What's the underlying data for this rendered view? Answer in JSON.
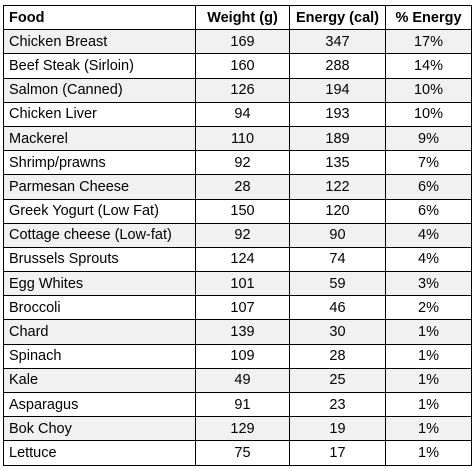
{
  "table": {
    "headers": [
      "Food",
      "Weight (g)",
      "Energy (cal)",
      "% Energy"
    ],
    "rows": [
      [
        "Chicken Breast",
        "169",
        "347",
        "17%"
      ],
      [
        "Beef Steak (Sirloin)",
        "160",
        "288",
        "14%"
      ],
      [
        "Salmon (Canned)",
        "126",
        "194",
        "10%"
      ],
      [
        "Chicken Liver",
        "94",
        "193",
        "10%"
      ],
      [
        "Mackerel",
        "110",
        "189",
        "9%"
      ],
      [
        "Shrimp/prawns",
        "92",
        "135",
        "7%"
      ],
      [
        "Parmesan Cheese",
        "28",
        "122",
        "6%"
      ],
      [
        "Greek Yogurt (Low Fat)",
        "150",
        "120",
        "6%"
      ],
      [
        "Cottage cheese (Low-fat)",
        "92",
        "90",
        "4%"
      ],
      [
        "Brussels Sprouts",
        "124",
        "74",
        "4%"
      ],
      [
        "Egg Whites",
        "101",
        "59",
        "3%"
      ],
      [
        "Broccoli",
        "107",
        "46",
        "2%"
      ],
      [
        "Chard",
        "139",
        "30",
        "1%"
      ],
      [
        "Spinach",
        "109",
        "28",
        "1%"
      ],
      [
        "Kale",
        "49",
        "25",
        "1%"
      ],
      [
        "Asparagus",
        "91",
        "23",
        "1%"
      ],
      [
        "Bok Choy",
        "129",
        "19",
        "1%"
      ],
      [
        "Lettuce",
        "75",
        "17",
        "1%"
      ]
    ]
  },
  "colors": {
    "stripe": "#f1f1f1",
    "border": "#000000"
  }
}
